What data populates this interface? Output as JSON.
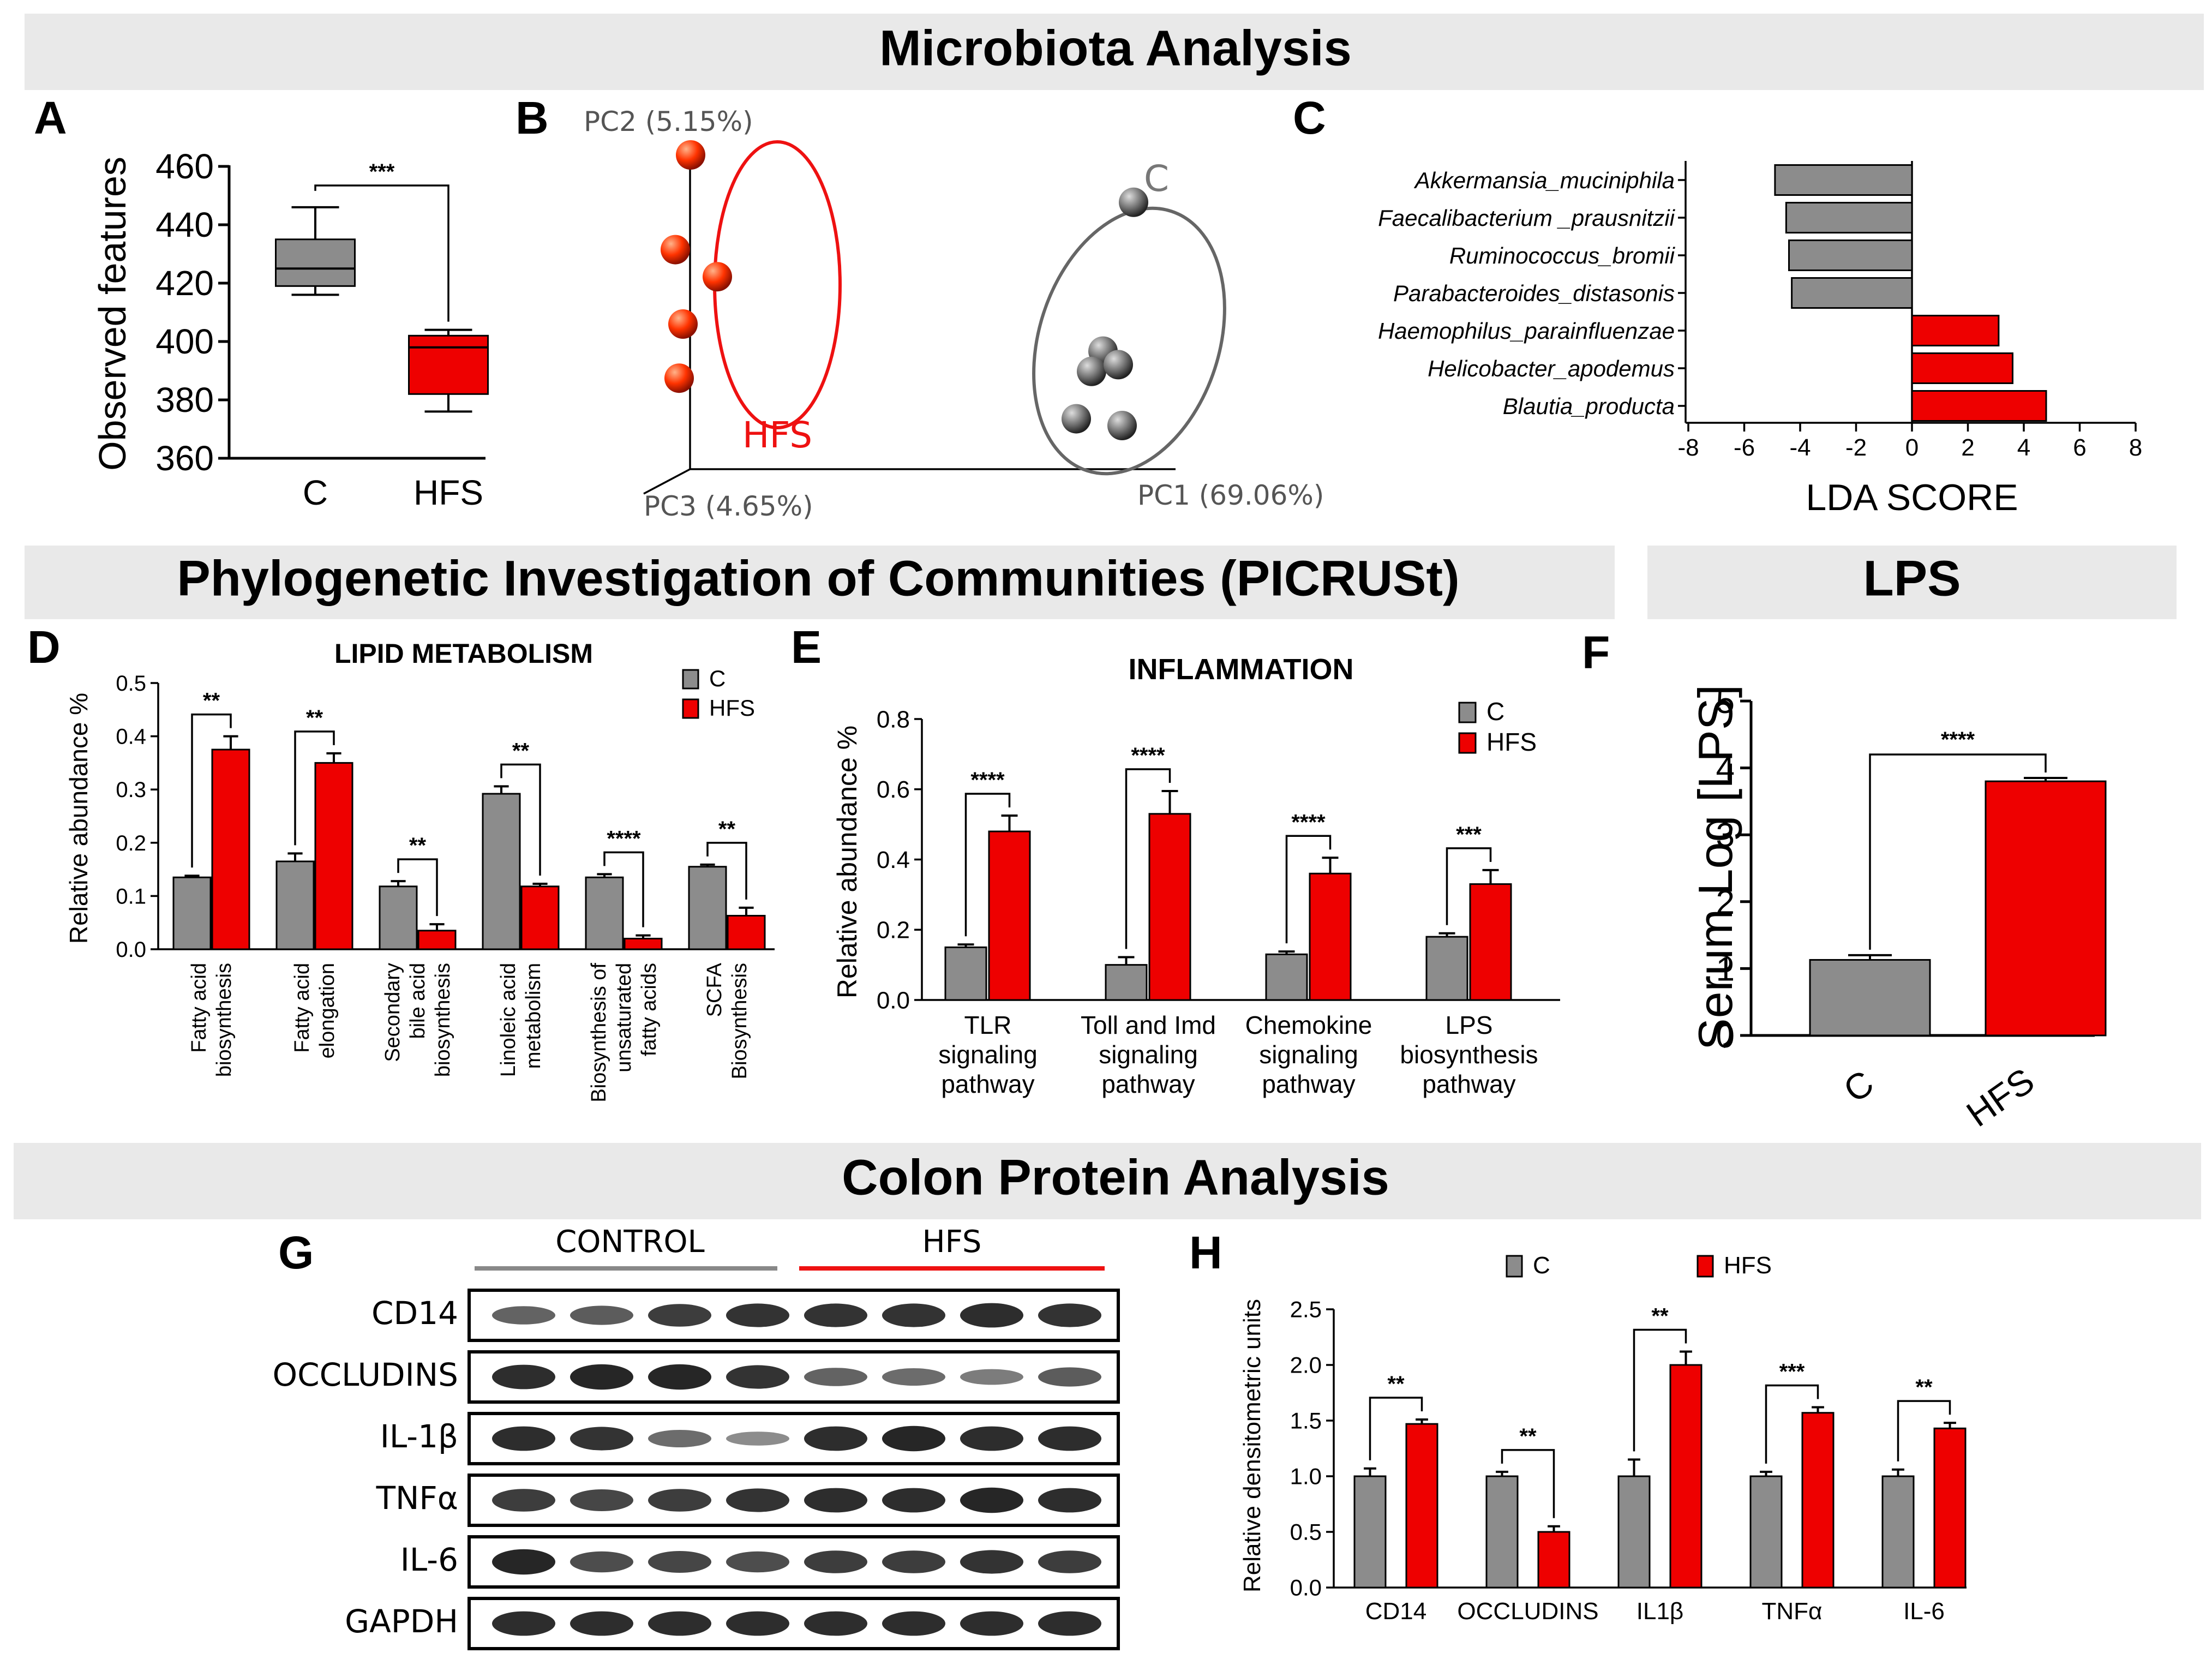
{
  "sections": {
    "microbiota": "Microbiota Analysis",
    "picrust": "Phylogenetic Investigation of Communities (PICRUSt)",
    "lps": "LPS",
    "colon": "Colon Protein Analysis"
  },
  "colors": {
    "control": "#8c8c8c",
    "hfs": "#ee0000",
    "section_bg": "#e9e9e9"
  },
  "chart_data": [
    {
      "panel": "A",
      "type": "box",
      "ylabel": "Observed features",
      "ylim": [
        360,
        460
      ],
      "yticks": [
        360,
        380,
        400,
        420,
        440,
        460
      ],
      "categories": [
        "C",
        "HFS"
      ],
      "boxes": [
        {
          "min": 416,
          "q1": 419,
          "median": 425,
          "q3": 435,
          "max": 446
        },
        {
          "min": 376,
          "q1": 382,
          "median": 398,
          "q3": 402,
          "max": 404
        }
      ],
      "significance": "***"
    },
    {
      "panel": "B",
      "type": "scatter",
      "axes": {
        "pc1": "PC1 (69.06%)",
        "pc2": "PC2 (5.15%)",
        "pc3": "PC3 (4.65%)"
      },
      "group_labels": {
        "hfs": "HFS",
        "c": "C"
      },
      "series": [
        {
          "group": "HFS",
          "points": [
            [
              -0.62,
              0.8
            ],
            [
              -0.66,
              0.52
            ],
            [
              -0.64,
              0.3
            ],
            [
              -0.65,
              0.14
            ],
            [
              -0.55,
              0.44
            ]
          ]
        },
        {
          "group": "C",
          "points": [
            [
              0.54,
              0.66
            ],
            [
              0.46,
              0.22
            ],
            [
              0.43,
              0.16
            ],
            [
              0.5,
              0.18
            ],
            [
              0.39,
              0.02
            ],
            [
              0.51,
              0.0
            ]
          ]
        }
      ]
    },
    {
      "panel": "C",
      "type": "bar",
      "orientation": "horizontal",
      "xlabel": "LDA SCORE",
      "xlim": [
        -8,
        8
      ],
      "xticks": [
        -8,
        -6,
        -4,
        -2,
        0,
        2,
        4,
        6,
        8
      ],
      "categories": [
        "Akkermansia_muciniphila",
        "Faecalibacterium _prausnitzii",
        "Ruminococcus_bromii",
        "Parabacteroides_distasonis",
        "Haemophilus_parainfluenzae",
        "Helicobacter_apodemus",
        "Blautia_producta"
      ],
      "values": [
        -4.9,
        -4.5,
        -4.4,
        -4.3,
        3.1,
        3.6,
        4.8
      ]
    },
    {
      "panel": "D",
      "type": "bar",
      "title": "LIPID METABOLISM",
      "ylabel": "Relative abundance %",
      "ylim": [
        0,
        0.5
      ],
      "yticks": [
        "0.0",
        "0.1",
        "0.2",
        "0.3",
        "0.4",
        "0.5"
      ],
      "legend": [
        "C",
        "HFS"
      ],
      "categories": [
        [
          "Fatty  acid",
          "biosynthesis"
        ],
        [
          "Fatty acid",
          "elongation"
        ],
        [
          "Secondary",
          "bile acid",
          "biosynthesis"
        ],
        [
          "Linoleic acid",
          "metabolism"
        ],
        [
          "Biosynthesis of",
          "unsaturated",
          "fatty acids"
        ],
        [
          "SCFA",
          "Biosynthesis"
        ]
      ],
      "series": [
        {
          "name": "C",
          "values": [
            0.135,
            0.165,
            0.118,
            0.292,
            0.135,
            0.155
          ],
          "errors": [
            0.003,
            0.015,
            0.01,
            0.014,
            0.006,
            0.004
          ]
        },
        {
          "name": "HFS",
          "values": [
            0.375,
            0.35,
            0.035,
            0.118,
            0.02,
            0.063
          ],
          "errors": [
            0.025,
            0.018,
            0.012,
            0.005,
            0.006,
            0.015
          ]
        }
      ],
      "significance": [
        "**",
        "**",
        "**",
        "**",
        "****",
        "**"
      ]
    },
    {
      "panel": "E",
      "type": "bar",
      "title": "INFLAMMATION",
      "ylabel": "Relative abundance %",
      "ylim": [
        0,
        0.8
      ],
      "yticks": [
        "0.0",
        "0.2",
        "0.4",
        "0.6",
        "0.8"
      ],
      "legend": [
        "C",
        "HFS"
      ],
      "categories": [
        [
          "TLR",
          "signaling",
          "pathway"
        ],
        [
          "Toll and Imd",
          "signaling",
          "pathway"
        ],
        [
          "Chemokine",
          "signaling",
          "pathway"
        ],
        [
          "LPS",
          "biosynthesis",
          "pathway"
        ]
      ],
      "series": [
        {
          "name": "C",
          "values": [
            0.15,
            0.1,
            0.13,
            0.18
          ],
          "errors": [
            0.008,
            0.022,
            0.008,
            0.01
          ]
        },
        {
          "name": "HFS",
          "values": [
            0.48,
            0.53,
            0.36,
            0.33
          ],
          "errors": [
            0.045,
            0.065,
            0.045,
            0.04
          ]
        }
      ],
      "significance": [
        "****",
        "****",
        "****",
        "***"
      ]
    },
    {
      "panel": "F",
      "type": "bar",
      "ylabel": "Serum Log [LPS]",
      "ylim": [
        0,
        5
      ],
      "yticks": [
        "0",
        "1",
        "2",
        "3",
        "4",
        "5"
      ],
      "categories": [
        "C",
        "HFS"
      ],
      "values": [
        1.13,
        3.8
      ],
      "errors": [
        0.07,
        0.05
      ],
      "significance": "****"
    },
    {
      "panel": "G",
      "type": "table",
      "group_labels": [
        "CONTROL",
        "HFS"
      ],
      "rows": [
        "CD14",
        "OCCLUDINS",
        "IL-1β",
        "TNFα",
        "IL-6",
        "GAPDH"
      ],
      "band_intensity": [
        [
          0.55,
          0.6,
          0.8,
          0.85,
          0.85,
          0.85,
          0.9,
          0.85
        ],
        [
          0.9,
          0.95,
          0.95,
          0.85,
          0.55,
          0.5,
          0.4,
          0.6
        ],
        [
          0.9,
          0.85,
          0.5,
          0.3,
          0.9,
          0.95,
          0.9,
          0.9
        ],
        [
          0.8,
          0.75,
          0.8,
          0.85,
          0.9,
          0.9,
          0.95,
          0.9
        ],
        [
          0.95,
          0.7,
          0.75,
          0.7,
          0.8,
          0.8,
          0.85,
          0.8
        ],
        [
          0.9,
          0.9,
          0.9,
          0.9,
          0.9,
          0.9,
          0.9,
          0.9
        ]
      ]
    },
    {
      "panel": "H",
      "type": "bar",
      "ylabel": "Relative densitometric units",
      "ylim": [
        0,
        2.5
      ],
      "yticks": [
        "0.0",
        "0.5",
        "1.0",
        "1.5",
        "2.0",
        "2.5"
      ],
      "legend": [
        "C",
        "HFS"
      ],
      "categories": [
        "CD14",
        "OCCLUDINS",
        "IL1β",
        "TNFα",
        "IL-6"
      ],
      "series": [
        {
          "name": "C",
          "values": [
            1.0,
            1.0,
            1.0,
            1.0,
            1.0
          ],
          "errors": [
            0.07,
            0.04,
            0.15,
            0.04,
            0.06
          ]
        },
        {
          "name": "HFS",
          "values": [
            1.47,
            0.5,
            2.0,
            1.57,
            1.43
          ],
          "errors": [
            0.04,
            0.05,
            0.12,
            0.05,
            0.05
          ]
        }
      ],
      "significance": [
        "**",
        "**",
        "**",
        "***",
        "**"
      ]
    }
  ]
}
